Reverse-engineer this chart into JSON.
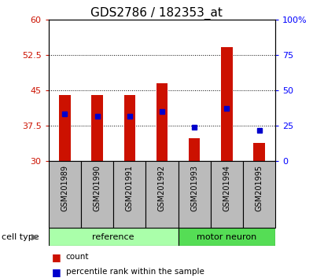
{
  "title": "GDS2786 / 182353_at",
  "samples": [
    "GSM201989",
    "GSM201990",
    "GSM201991",
    "GSM201992",
    "GSM201993",
    "GSM201994",
    "GSM201995"
  ],
  "bar_tops": [
    44.0,
    44.0,
    44.0,
    46.5,
    34.8,
    54.2,
    33.8
  ],
  "bar_base": 30.0,
  "percentile_values": [
    40.0,
    39.5,
    39.5,
    40.5,
    37.2,
    41.2,
    36.5
  ],
  "ylim_left": [
    30,
    60
  ],
  "ylim_right": [
    0,
    100
  ],
  "yticks_left": [
    30,
    37.5,
    45,
    52.5,
    60
  ],
  "ytick_labels_left": [
    "30",
    "37.5",
    "45",
    "52.5",
    "60"
  ],
  "yticks_right_pct": [
    0,
    25,
    50,
    75,
    100
  ],
  "ytick_labels_right": [
    "0",
    "25",
    "50",
    "75",
    "100%"
  ],
  "bar_color": "#cc1100",
  "marker_color": "#0000cc",
  "bar_width": 0.35,
  "ref_count": 4,
  "motor_count": 3,
  "ref_color": "#aaffaa",
  "motor_color": "#55dd55",
  "ref_label": "reference",
  "motor_label": "motor neuron",
  "cell_type_label": "cell type",
  "legend_count_label": "count",
  "legend_pct_label": "percentile rank within the sample",
  "background_color": "#ffffff",
  "sample_box_color": "#bbbbbb",
  "title_fontsize": 11,
  "tick_label_fontsize": 8,
  "sample_label_fontsize": 7,
  "group_label_fontsize": 8,
  "legend_fontsize": 7.5
}
